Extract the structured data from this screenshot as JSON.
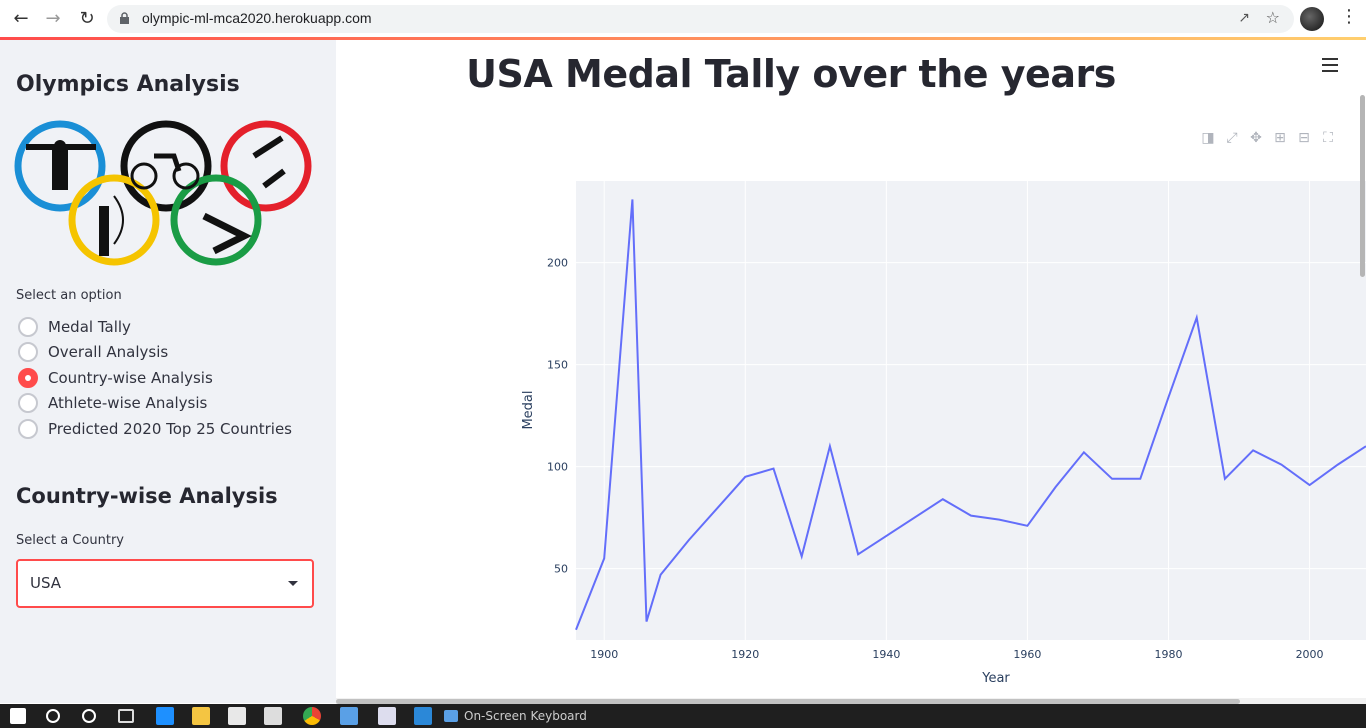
{
  "browser": {
    "url": "olympic-ml-mca2020.herokuapp.com"
  },
  "sidebar": {
    "title": "Olympics Analysis",
    "option_label": "Select an option",
    "options": [
      {
        "label": "Medal Tally",
        "selected": false
      },
      {
        "label": "Overall Analysis",
        "selected": false
      },
      {
        "label": "Country-wise Analysis",
        "selected": true
      },
      {
        "label": "Athlete-wise Analysis",
        "selected": false
      },
      {
        "label": "Predicted 2020 Top 25 Countries",
        "selected": false
      }
    ],
    "section_title": "Country-wise Analysis",
    "country_label": "Select a Country",
    "country_value": "USA"
  },
  "main": {
    "title": "USA Medal Tally over the years"
  },
  "taskbar": {
    "osk_label": "On-Screen Keyboard"
  },
  "colors": {
    "accent": "#ff4b4b",
    "line": "#636efa",
    "plot_bg": "#e5ecf6"
  },
  "chart_data": {
    "type": "line",
    "title": "",
    "xlabel": "Year",
    "ylabel": "Medal",
    "xlim": [
      1896,
      2008
    ],
    "ylim": [
      15,
      240
    ],
    "xticks": [
      1900,
      1920,
      1940,
      1960,
      1980,
      2000
    ],
    "yticks": [
      50,
      100,
      150,
      200
    ],
    "grid": true,
    "series": [
      {
        "x": [
          1896,
          1900,
          1904,
          1906,
          1908,
          1912,
          1920,
          1924,
          1928,
          1932,
          1936,
          1948,
          1952,
          1956,
          1960,
          1964,
          1968,
          1972,
          1976,
          1980,
          1984,
          1988,
          1992,
          1996,
          2000,
          2004,
          2008
        ],
        "y": [
          20,
          55,
          231,
          24,
          47,
          64,
          95,
          99,
          56,
          110,
          57,
          84,
          76,
          74,
          71,
          90,
          107,
          94,
          94,
          134,
          173,
          94,
          108,
          101,
          91,
          101,
          110
        ]
      }
    ]
  }
}
